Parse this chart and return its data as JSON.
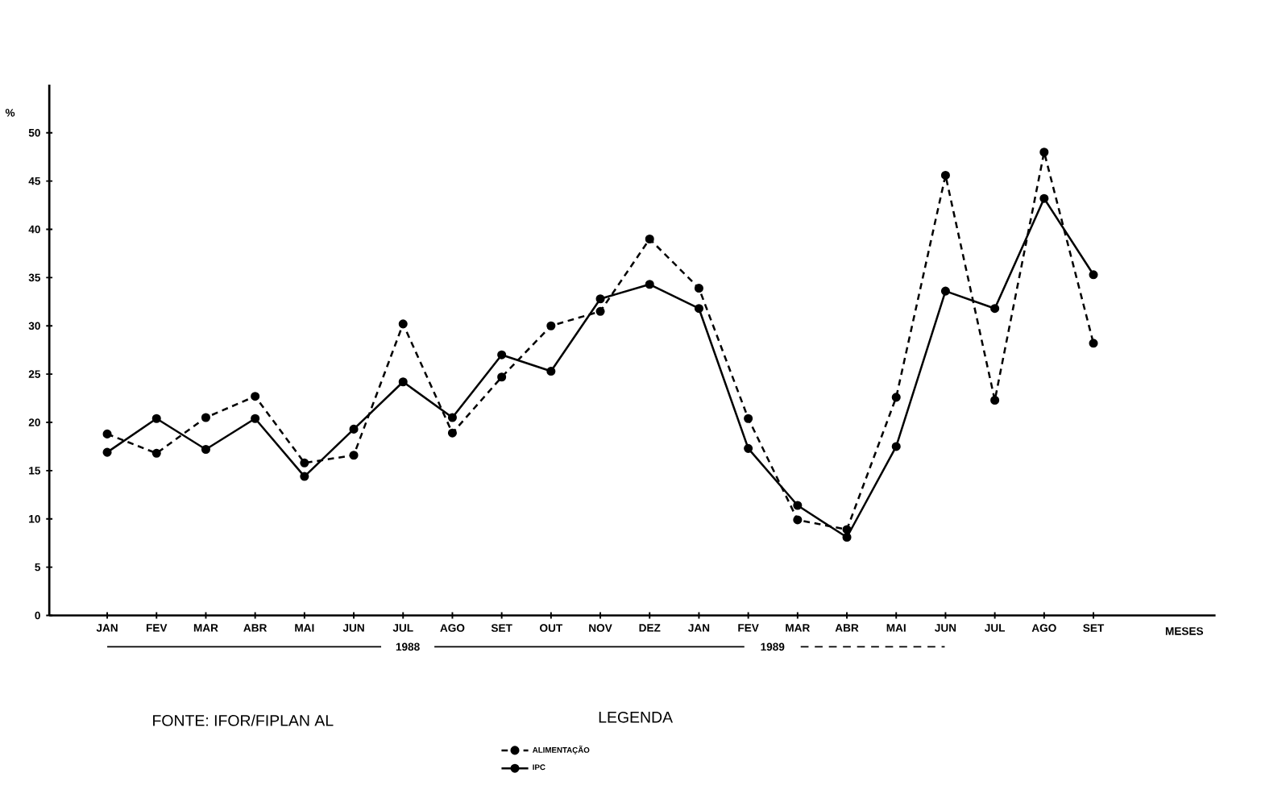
{
  "chart_data": {
    "type": "line",
    "xlabel": "MESES",
    "ylabel": "%",
    "legend_title": "LEGENDA",
    "categories": [
      "JAN",
      "FEV",
      "MAR",
      "ABR",
      "MAI",
      "JUN",
      "JUL",
      "AGO",
      "SET",
      "OUT",
      "NOV",
      "DEZ",
      "JAN",
      "FEV",
      "MAR",
      "ABR",
      "MAI",
      "JUN",
      "JUL",
      "AGO",
      "SET"
    ],
    "series": [
      {
        "name": "ALIMENTAÇÃO",
        "color": "#000000",
        "line_style": "dashed",
        "values": [
          18.8,
          16.8,
          20.5,
          22.7,
          15.8,
          16.6,
          30.2,
          18.9,
          24.7,
          30.0,
          31.5,
          39.0,
          33.9,
          20.4,
          9.9,
          8.9,
          22.6,
          45.6,
          22.3,
          48.0,
          28.2
        ]
      },
      {
        "name": "IPC",
        "color": "#000000",
        "line_style": "solid",
        "values": [
          16.9,
          20.4,
          17.2,
          20.4,
          14.4,
          19.3,
          24.2,
          20.5,
          27.0,
          25.3,
          32.8,
          34.3,
          31.8,
          17.3,
          11.4,
          8.1,
          17.5,
          33.6,
          31.8,
          43.2,
          35.3
        ]
      }
    ],
    "ylim": [
      0,
      55
    ],
    "yticks": [
      0,
      5,
      10,
      15,
      20,
      25,
      30,
      35,
      40,
      45,
      50
    ],
    "marker": "circle",
    "grid": false,
    "legend": "bottom",
    "annotations": [
      "1988",
      "1989",
      "FONTE: IFOR/FIPLAN AL"
    ]
  }
}
